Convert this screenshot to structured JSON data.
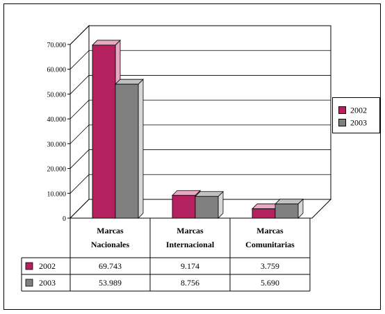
{
  "chart_data": {
    "type": "bar",
    "categories": [
      "Marcas Nacionales",
      "Marcas Internacional",
      "Marcas Comunitarias"
    ],
    "series": [
      {
        "name": "2002",
        "values": [
          69743,
          9174,
          3759
        ],
        "labels": [
          "69.743",
          "9.174",
          "3.759"
        ],
        "color": "#B3215E",
        "top_color": "#E8A8C2",
        "side_color": "#E8A8C2"
      },
      {
        "name": "2003",
        "values": [
          53989,
          8756,
          5690
        ],
        "labels": [
          "53.989",
          "8.756",
          "5.690"
        ],
        "color": "#808080",
        "top_color": "#C0C0C0",
        "side_color": "#D8D8D8"
      }
    ],
    "ylim": [
      0,
      70000
    ],
    "y_ticks": [
      0,
      10000,
      20000,
      30000,
      40000,
      50000,
      60000,
      70000
    ],
    "y_tick_labels": [
      "0",
      "10.000",
      "20.000",
      "30.000",
      "40.000",
      "50.000",
      "60.000",
      "70.000"
    ],
    "grid": true,
    "legend_position": "right",
    "data_table": true
  }
}
